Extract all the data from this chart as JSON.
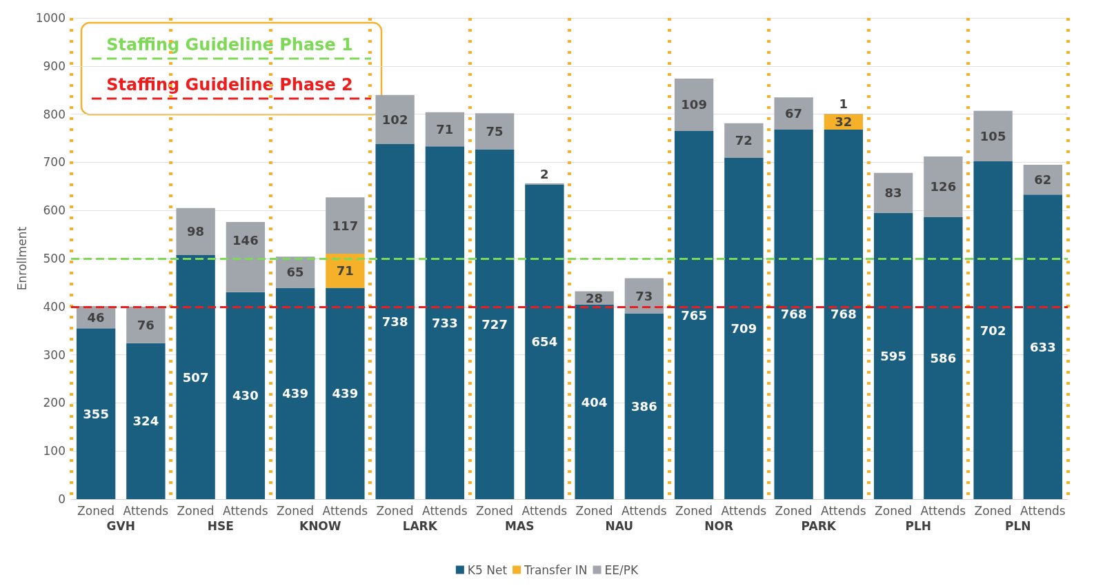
{
  "chart_data": {
    "type": "bar",
    "stacked": true,
    "ylabel": "Enrollment",
    "categories": [
      "Zoned",
      "Attends",
      "Zoned",
      "Attends",
      "Zoned",
      "Attends",
      "Zoned",
      "Attends",
      "Zoned",
      "Attends",
      "Zoned",
      "Attends",
      "Zoned",
      "Attends",
      "Zoned",
      "Attends",
      "Zoned",
      "Attends",
      "Zoned",
      "Attends"
    ],
    "annotations": [
      "GVH",
      "HSE",
      "KNOW",
      "LARK",
      "MAS",
      "NAU",
      "NOR",
      "PARK",
      "PLH",
      "PLN"
    ],
    "series": [
      {
        "name": "K5 Net",
        "color": "#1a5e80",
        "values": [
          355,
          324,
          507,
          430,
          439,
          439,
          738,
          733,
          727,
          654,
          404,
          386,
          765,
          709,
          768,
          768,
          595,
          586,
          702,
          633
        ]
      },
      {
        "name": "Transfer IN",
        "color": "#f5b12a",
        "values": [
          null,
          null,
          null,
          null,
          null,
          71,
          null,
          null,
          null,
          null,
          null,
          null,
          null,
          null,
          null,
          32,
          null,
          null,
          null,
          null
        ]
      },
      {
        "name": "EE/PK",
        "color": "#a1a5ac",
        "values": [
          46,
          76,
          98,
          146,
          65,
          117,
          102,
          71,
          75,
          2,
          28,
          73,
          109,
          72,
          67,
          1,
          83,
          126,
          105,
          62
        ]
      }
    ],
    "data_labels": true,
    "ylim": [
      0,
      1000
    ],
    "yticks": [
      0,
      100,
      200,
      300,
      400,
      500,
      600,
      700,
      800,
      900,
      1000
    ],
    "grid": "y",
    "legend": "bottom",
    "ref_lines": [
      {
        "axis": "y",
        "value": 500,
        "label": "Staffing Guideline Phase 1",
        "color": "#7ed957",
        "line_style": "dashed"
      },
      {
        "axis": "y",
        "value": 400,
        "label": "Staffing Guideline Phase 2",
        "color": "#ee1c1c",
        "line_style": "dashed"
      }
    ]
  }
}
